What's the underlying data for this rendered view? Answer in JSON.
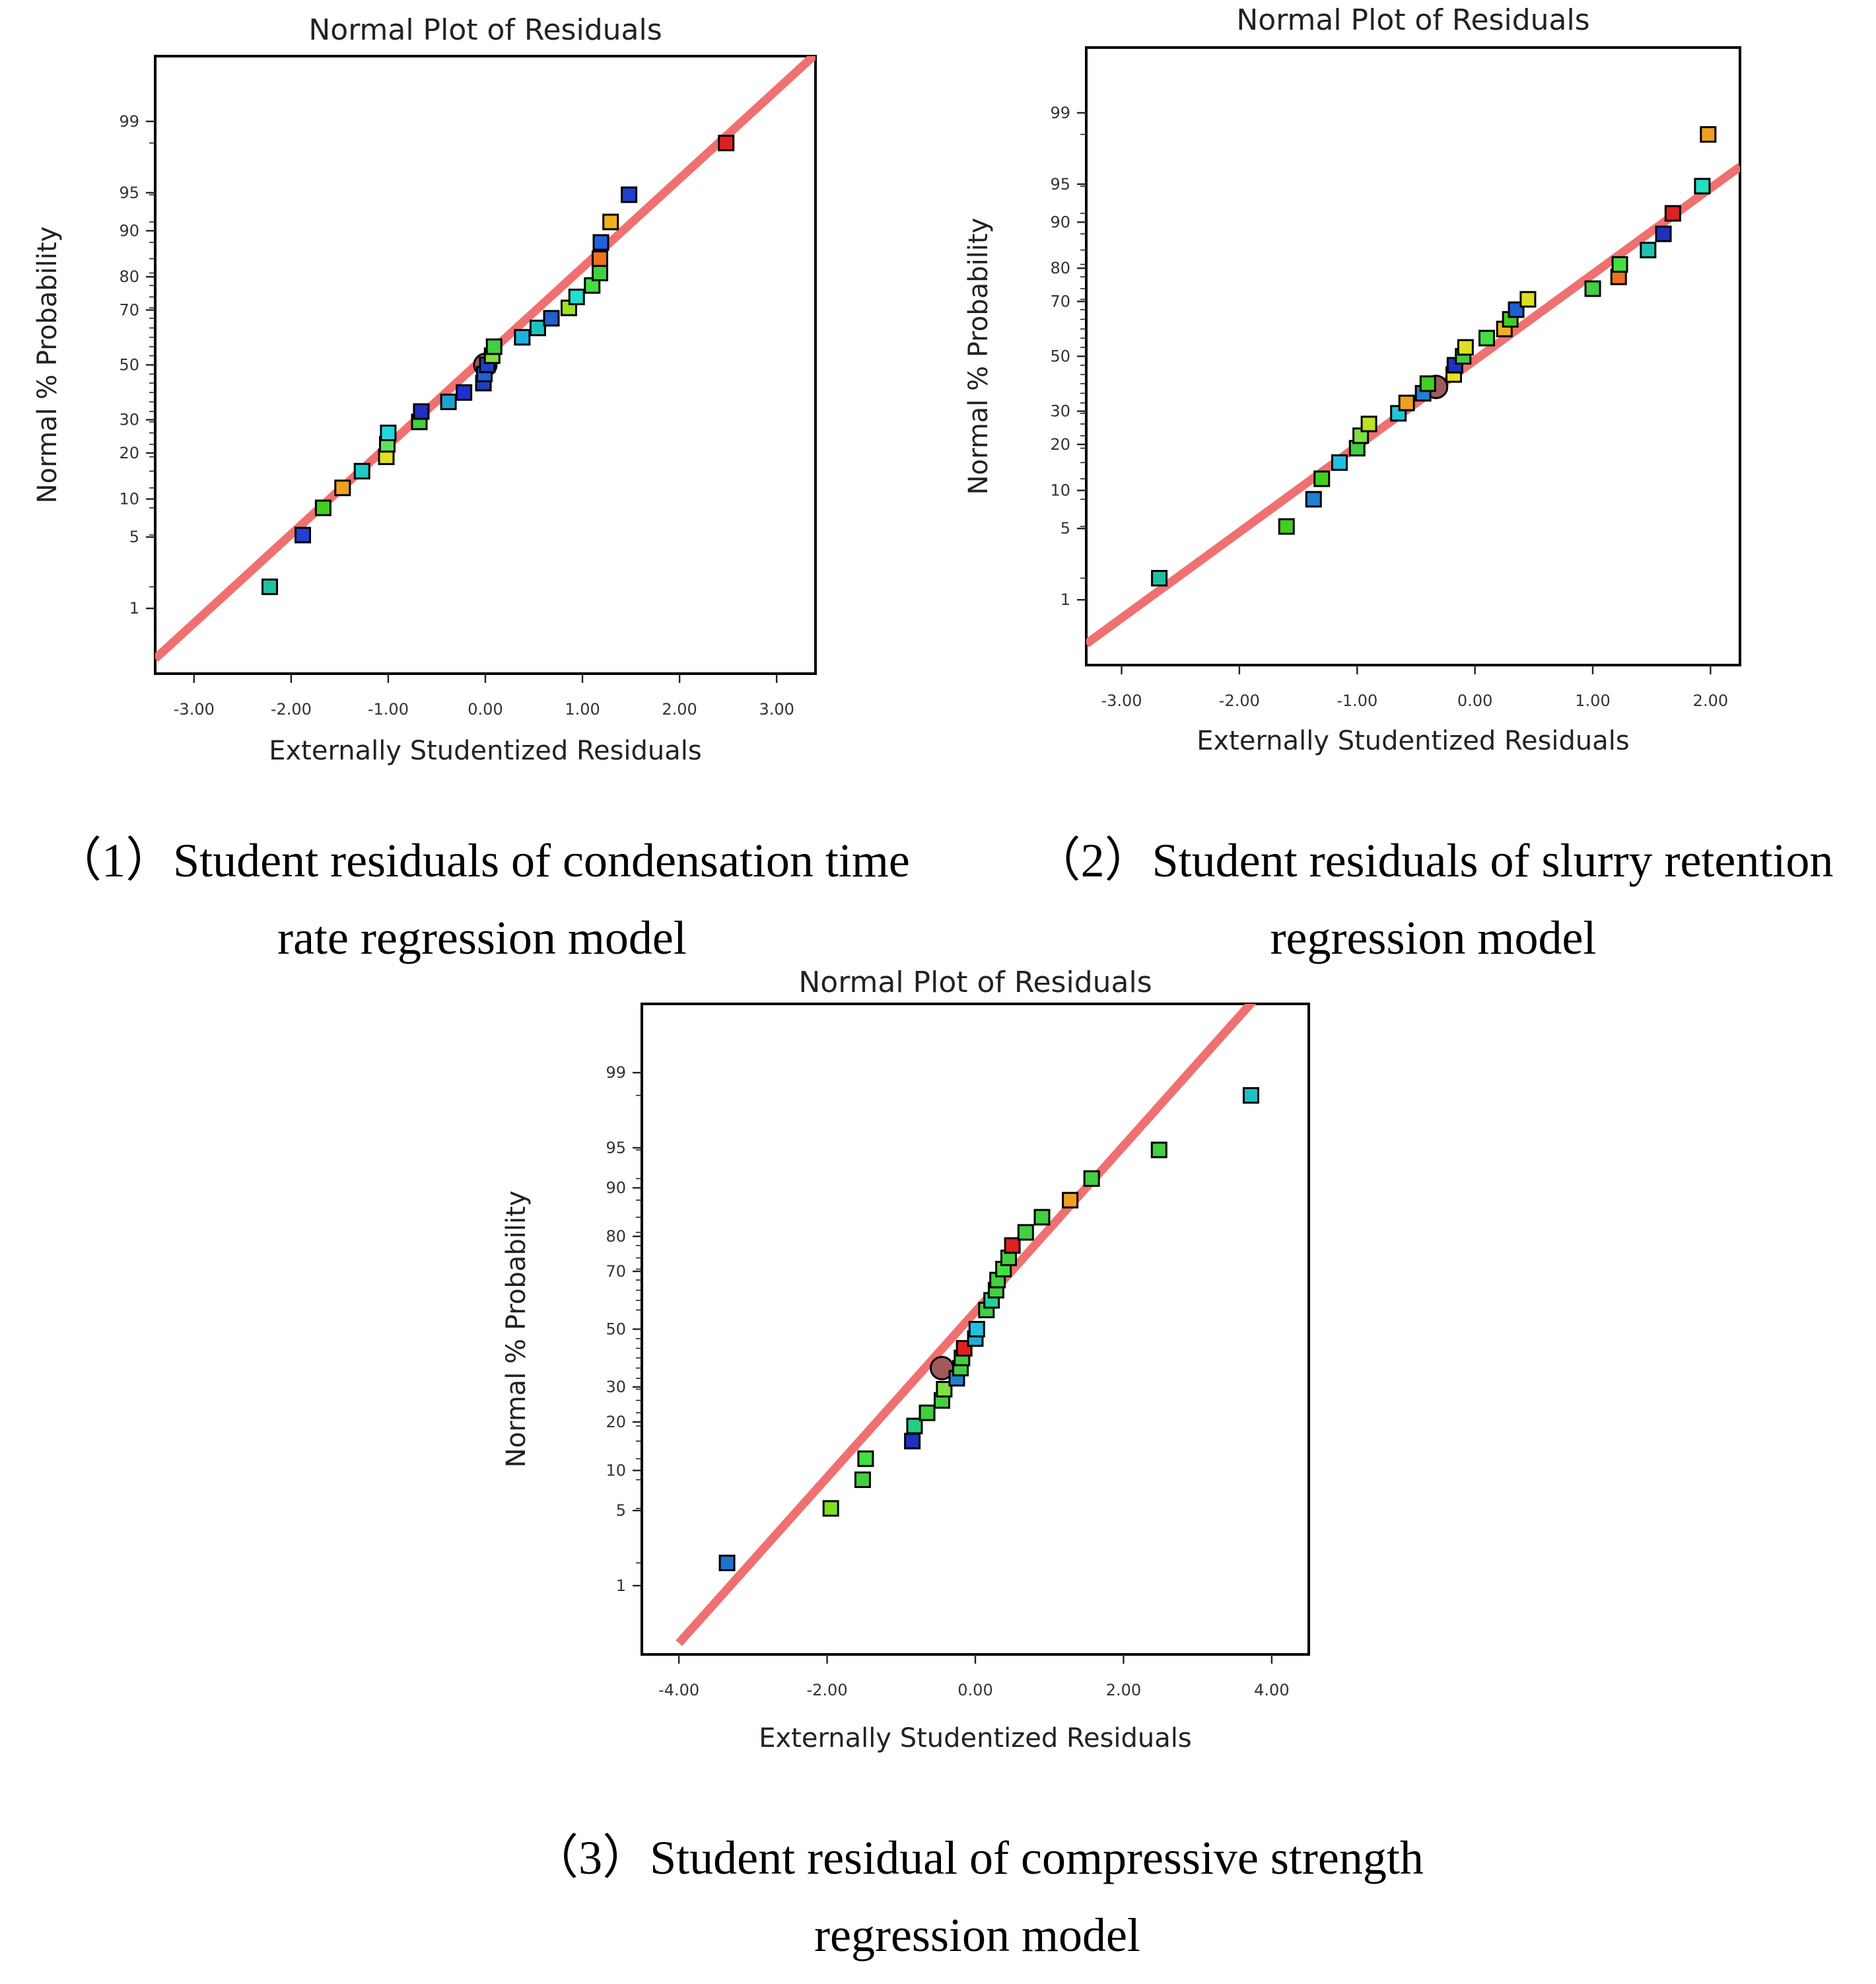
{
  "charts": [
    {
      "caption": "（1）Student residuals of condensation time\nrate regression model"
    },
    {
      "caption": "（2）Student residuals of slurry retention\nregression model"
    },
    {
      "caption": "（3）Student residual of compressive strength\nregression model"
    }
  ],
  "chart_data": [
    {
      "type": "scatter",
      "title": "Normal Plot of Residuals",
      "xlabel": "Externally Studentized Residuals",
      "ylabel": "Normal % Probability",
      "xlim": [
        -3.4,
        3.4
      ],
      "x_ticks": [
        -3,
        -2,
        -1,
        0,
        1,
        2,
        3
      ],
      "x_tick_labels": [
        "-3.00",
        "-2.00",
        "-1.00",
        "0.00",
        "1.00",
        "2.00",
        "3.00"
      ],
      "y_scale": "normal-probability",
      "y_ticks": [
        1,
        5,
        10,
        20,
        30,
        50,
        70,
        80,
        90,
        95,
        99
      ],
      "y_tick_labels": [
        "1",
        "5",
        "10",
        "20",
        "30",
        "50",
        "70",
        "80",
        "90",
        "95",
        "99"
      ],
      "fit_line": {
        "x": [
          -3.4,
          3.4
        ],
        "y": [
          0.25,
          99.85
        ],
        "color": "#f07070"
      },
      "points": [
        {
          "x": -2.22,
          "y": 1.7,
          "color": "#20c0a0"
        },
        {
          "x": -1.88,
          "y": 5.2,
          "color": "#2040d0"
        },
        {
          "x": -1.67,
          "y": 8.6,
          "color": "#40d020"
        },
        {
          "x": -1.47,
          "y": 12,
          "color": "#f0a020"
        },
        {
          "x": -1.27,
          "y": 15.5,
          "color": "#20c8c8"
        },
        {
          "x": -1.02,
          "y": 19,
          "color": "#e0e020"
        },
        {
          "x": -1.01,
          "y": 22.4,
          "color": "#60e060"
        },
        {
          "x": -1.0,
          "y": 25.8,
          "color": "#20d8e0"
        },
        {
          "x": -0.68,
          "y": 29.3,
          "color": "#40d040"
        },
        {
          "x": -0.66,
          "y": 32.8,
          "color": "#2030c0"
        },
        {
          "x": -0.38,
          "y": 36.2,
          "color": "#20a0d0"
        },
        {
          "x": -0.22,
          "y": 39.6,
          "color": "#2030d0"
        },
        {
          "x": -0.02,
          "y": 43.1,
          "color": "#2040c0"
        },
        {
          "x": -0.01,
          "y": 46.5,
          "color": "#2060d0"
        },
        {
          "x": 0.02,
          "y": 50,
          "color": "#2040c0"
        },
        {
          "x": 0.07,
          "y": 53.5,
          "color": "#80e040"
        },
        {
          "x": 0.09,
          "y": 56.9,
          "color": "#40d040"
        },
        {
          "x": 0.38,
          "y": 60.4,
          "color": "#20b0e0"
        },
        {
          "x": 0.54,
          "y": 63.8,
          "color": "#20c0c0"
        },
        {
          "x": 0.68,
          "y": 67.2,
          "color": "#2060d0"
        },
        {
          "x": 0.86,
          "y": 70.7,
          "color": "#a0e020"
        },
        {
          "x": 0.94,
          "y": 74.2,
          "color": "#20e0d0"
        },
        {
          "x": 1.1,
          "y": 77.6,
          "color": "#40e040"
        },
        {
          "x": 1.18,
          "y": 81,
          "color": "#40d040"
        },
        {
          "x": 1.18,
          "y": 84.5,
          "color": "#f07020"
        },
        {
          "x": 1.19,
          "y": 87.9,
          "color": "#2060e0"
        },
        {
          "x": 1.29,
          "y": 91.4,
          "color": "#f0b020"
        },
        {
          "x": 1.48,
          "y": 94.8,
          "color": "#2040d0"
        },
        {
          "x": 2.48,
          "y": 98.3,
          "color": "#e02020"
        }
      ],
      "highlight_point": {
        "x": 0.0,
        "y": 50
      }
    },
    {
      "type": "scatter",
      "title": "Normal Plot of Residuals",
      "xlabel": "Externally Studentized Residuals",
      "ylabel": "Normal % Probability",
      "xlim": [
        -3.3,
        2.25
      ],
      "x_ticks": [
        -3,
        -2,
        -1,
        0,
        1,
        2
      ],
      "x_tick_labels": [
        "-3.00",
        "-2.00",
        "-1.00",
        "0.00",
        "1.00",
        "2.00"
      ],
      "y_scale": "normal-probability",
      "y_ticks": [
        1,
        5,
        10,
        20,
        30,
        50,
        70,
        80,
        90,
        95,
        99
      ],
      "y_tick_labels": [
        "1",
        "5",
        "10",
        "20",
        "30",
        "50",
        "70",
        "80",
        "90",
        "95",
        "99"
      ],
      "fit_line": {
        "x": [
          -3.3,
          2.25
        ],
        "y": [
          0.3,
          96.5
        ],
        "color": "#f07070"
      },
      "points": [
        {
          "x": -2.68,
          "y": 1.7,
          "color": "#20c0a0"
        },
        {
          "x": -1.6,
          "y": 5.2,
          "color": "#40d020"
        },
        {
          "x": -1.37,
          "y": 8.6,
          "color": "#2080d0"
        },
        {
          "x": -1.3,
          "y": 12.1,
          "color": "#40d020"
        },
        {
          "x": -1.15,
          "y": 15.5,
          "color": "#20c0e0"
        },
        {
          "x": -1.0,
          "y": 19,
          "color": "#40d040"
        },
        {
          "x": -0.97,
          "y": 22.4,
          "color": "#80e040"
        },
        {
          "x": -0.9,
          "y": 25.9,
          "color": "#c0e020"
        },
        {
          "x": -0.65,
          "y": 29.3,
          "color": "#20c8d8"
        },
        {
          "x": -0.58,
          "y": 32.8,
          "color": "#f0a020"
        },
        {
          "x": -0.44,
          "y": 36.2,
          "color": "#2080d0"
        },
        {
          "x": -0.4,
          "y": 39.7,
          "color": "#40d020"
        },
        {
          "x": -0.18,
          "y": 43.1,
          "color": "#f0e020"
        },
        {
          "x": -0.17,
          "y": 46.6,
          "color": "#2030c0"
        },
        {
          "x": -0.1,
          "y": 50,
          "color": "#40d040"
        },
        {
          "x": -0.08,
          "y": 53.4,
          "color": "#e0e020"
        },
        {
          "x": 0.1,
          "y": 56.9,
          "color": "#40e040"
        },
        {
          "x": 0.25,
          "y": 60.3,
          "color": "#f0b020"
        },
        {
          "x": 0.3,
          "y": 63.8,
          "color": "#40d020"
        },
        {
          "x": 0.35,
          "y": 67.2,
          "color": "#2060d0"
        },
        {
          "x": 0.45,
          "y": 70.7,
          "color": "#e0e020"
        },
        {
          "x": 1.0,
          "y": 74.1,
          "color": "#40d040"
        },
        {
          "x": 1.22,
          "y": 77.6,
          "color": "#f07020"
        },
        {
          "x": 1.23,
          "y": 81,
          "color": "#40e040"
        },
        {
          "x": 1.47,
          "y": 84.5,
          "color": "#20c0b0"
        },
        {
          "x": 1.6,
          "y": 87.9,
          "color": "#2030c0"
        },
        {
          "x": 1.68,
          "y": 91.4,
          "color": "#e02020"
        },
        {
          "x": 1.93,
          "y": 94.8,
          "color": "#20e0c0"
        },
        {
          "x": 1.98,
          "y": 98.3,
          "color": "#f0a020"
        }
      ],
      "highlight_point": {
        "x": -0.33,
        "y": 38.5
      }
    },
    {
      "type": "scatter",
      "title": "Normal Plot of Residuals",
      "xlabel": "Externally Studentized Residuals",
      "ylabel": "Normal % Probability",
      "xlim": [
        -4.5,
        4.5
      ],
      "x_ticks": [
        -4,
        -2,
        0,
        2,
        4
      ],
      "x_tick_labels": [
        "-4.00",
        "-2.00",
        "0.00",
        "2.00",
        "4.00"
      ],
      "y_scale": "normal-probability",
      "y_ticks": [
        1,
        5,
        10,
        20,
        30,
        50,
        70,
        80,
        90,
        95,
        99
      ],
      "y_tick_labels": [
        "1",
        "5",
        "10",
        "20",
        "30",
        "50",
        "70",
        "80",
        "90",
        "95",
        "99"
      ],
      "fit_line": {
        "x": [
          -4.0,
          3.9
        ],
        "y": [
          0.22,
          99.9
        ],
        "color": "#f07070"
      },
      "points": [
        {
          "x": -3.35,
          "y": 1.7,
          "color": "#2070d0"
        },
        {
          "x": -1.95,
          "y": 5.2,
          "color": "#80e020"
        },
        {
          "x": -1.52,
          "y": 8.6,
          "color": "#40d040"
        },
        {
          "x": -1.48,
          "y": 12,
          "color": "#40e040"
        },
        {
          "x": -0.85,
          "y": 15.5,
          "color": "#2030c0"
        },
        {
          "x": -0.82,
          "y": 19,
          "color": "#20d080"
        },
        {
          "x": -0.65,
          "y": 22.4,
          "color": "#40d040"
        },
        {
          "x": -0.45,
          "y": 25.9,
          "color": "#40d040"
        },
        {
          "x": -0.42,
          "y": 29.3,
          "color": "#80e040"
        },
        {
          "x": -0.25,
          "y": 32.8,
          "color": "#2080d0"
        },
        {
          "x": -0.2,
          "y": 36.2,
          "color": "#40d040"
        },
        {
          "x": -0.18,
          "y": 39.7,
          "color": "#40d040"
        },
        {
          "x": -0.15,
          "y": 43.1,
          "color": "#e02020"
        },
        {
          "x": 0.0,
          "y": 46.6,
          "color": "#20b0d0"
        },
        {
          "x": 0.02,
          "y": 50,
          "color": "#20c0e0"
        },
        {
          "x": 0.15,
          "y": 56.9,
          "color": "#40d040"
        },
        {
          "x": 0.22,
          "y": 60.3,
          "color": "#20d0a0"
        },
        {
          "x": 0.28,
          "y": 63.8,
          "color": "#40d040"
        },
        {
          "x": 0.3,
          "y": 67.2,
          "color": "#40d040"
        },
        {
          "x": 0.38,
          "y": 70.7,
          "color": "#40e040"
        },
        {
          "x": 0.45,
          "y": 74.1,
          "color": "#40d040"
        },
        {
          "x": 0.5,
          "y": 77.6,
          "color": "#e02020"
        },
        {
          "x": 0.68,
          "y": 81,
          "color": "#40d040"
        },
        {
          "x": 0.9,
          "y": 84.5,
          "color": "#40d040"
        },
        {
          "x": 1.28,
          "y": 87.9,
          "color": "#f0a020"
        },
        {
          "x": 1.57,
          "y": 91.4,
          "color": "#40d040"
        },
        {
          "x": 2.48,
          "y": 94.8,
          "color": "#40d040"
        },
        {
          "x": 3.72,
          "y": 98.3,
          "color": "#20c0c0"
        }
      ],
      "highlight_point": {
        "x": -0.45,
        "y": 36.2
      }
    }
  ]
}
